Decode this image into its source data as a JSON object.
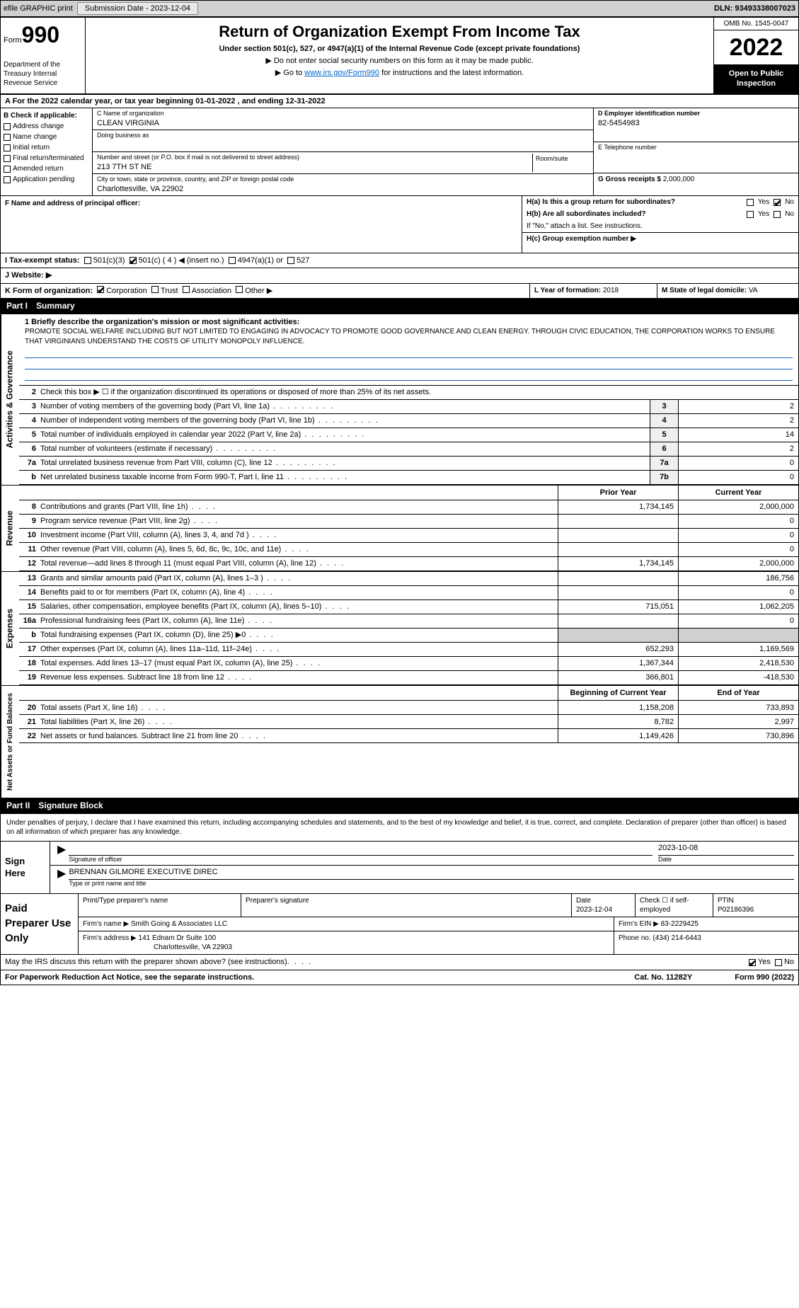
{
  "topbar": {
    "efile": "efile GRAPHIC print",
    "submission_label": "Submission Date - 2023-12-04",
    "dln_label": "DLN: 93493338007023"
  },
  "header": {
    "form_label": "Form",
    "form_number": "990",
    "main_title": "Return of Organization Exempt From Income Tax",
    "subtitle": "Under section 501(c), 527, or 4947(a)(1) of the Internal Revenue Code (except private foundations)",
    "note1": "▶ Do not enter social security numbers on this form as it may be made public.",
    "note2_pre": "▶ Go to ",
    "note2_link": "www.irs.gov/Form990",
    "note2_post": " for instructions and the latest information.",
    "omb": "OMB No. 1545-0047",
    "year": "2022",
    "open_inspect": "Open to Public Inspection",
    "dept": "Department of the Treasury Internal Revenue Service"
  },
  "line_a": "A For the 2022 calendar year, or tax year beginning 01-01-2022   , and ending 12-31-2022",
  "section_b": {
    "header": "B Check if applicable:",
    "items": [
      "Address change",
      "Name change",
      "Initial return",
      "Final return/terminated",
      "Amended return",
      "Application pending"
    ]
  },
  "section_c": {
    "name_label": "C Name of organization",
    "name_value": "CLEAN VIRGINIA",
    "dba_label": "Doing business as",
    "street_label": "Number and street (or P.O. box if mail is not delivered to street address)",
    "street_value": "213 7TH ST NE",
    "room_label": "Room/suite",
    "city_label": "City or town, state or province, country, and ZIP or foreign postal code",
    "city_value": "Charlottesville, VA  22902"
  },
  "section_d": {
    "label": "D Employer identification number",
    "value": "82-5454983"
  },
  "section_e": {
    "label": "E Telephone number"
  },
  "section_g": {
    "label": "G Gross receipts $",
    "value": "2,000,000"
  },
  "section_f": {
    "label": "F  Name and address of principal officer:"
  },
  "section_h": {
    "ha": "H(a)  Is this a group return for subordinates?",
    "hb": "H(b)  Are all subordinates included?",
    "hb_note": "If \"No,\" attach a list. See instructions.",
    "hc": "H(c)  Group exemption number ▶",
    "yes": "Yes",
    "no": "No"
  },
  "section_i": {
    "label": "I   Tax-exempt status:",
    "opt1": "501(c)(3)",
    "opt2": "501(c) ( 4 ) ◀ (insert no.)",
    "opt3": "4947(a)(1) or",
    "opt4": "527"
  },
  "section_j": {
    "label": "J   Website: ▶"
  },
  "section_k": {
    "label": "K Form of organization:",
    "opts": [
      "Corporation",
      "Trust",
      "Association",
      "Other ▶"
    ]
  },
  "section_l": {
    "label": "L Year of formation:",
    "value": "2018"
  },
  "section_m": {
    "label": "M State of legal domicile:",
    "value": "VA"
  },
  "part1": {
    "label": "Part I",
    "title": "Summary",
    "q1_label": "1  Briefly describe the organization's mission or most significant activities:",
    "mission": "PROMOTE SOCIAL WELFARE INCLUDING BUT NOT LIMITED TO ENGAGING IN ADVOCACY TO PROMOTE GOOD GOVERNANCE AND CLEAN ENERGY. THROUGH CIVIC EDUCATION, THE CORPORATION WORKS TO ENSURE THAT VIRGINIANS UNDERSTAND THE COSTS OF UTILITY MONOPOLY INFLUENCE.",
    "q2": "Check this box ▶ ☐  if the organization discontinued its operations or disposed of more than 25% of its net assets.",
    "governance_rows": [
      {
        "n": "3",
        "t": "Number of voting members of the governing body (Part VI, line 1a)",
        "box": "3",
        "v": "2"
      },
      {
        "n": "4",
        "t": "Number of independent voting members of the governing body (Part VI, line 1b)",
        "box": "4",
        "v": "2"
      },
      {
        "n": "5",
        "t": "Total number of individuals employed in calendar year 2022 (Part V, line 2a)",
        "box": "5",
        "v": "14"
      },
      {
        "n": "6",
        "t": "Total number of volunteers (estimate if necessary)",
        "box": "6",
        "v": "2"
      },
      {
        "n": "7a",
        "t": "Total unrelated business revenue from Part VIII, column (C), line 12",
        "box": "7a",
        "v": "0"
      },
      {
        "n": "b",
        "t": "Net unrelated business taxable income from Form 990-T, Part I, line 11",
        "box": "7b",
        "v": "0"
      }
    ],
    "col_prior": "Prior Year",
    "col_current": "Current Year",
    "revenue_rows": [
      {
        "n": "8",
        "t": "Contributions and grants (Part VIII, line 1h)",
        "p": "1,734,145",
        "c": "2,000,000"
      },
      {
        "n": "9",
        "t": "Program service revenue (Part VIII, line 2g)",
        "p": "",
        "c": "0"
      },
      {
        "n": "10",
        "t": "Investment income (Part VIII, column (A), lines 3, 4, and 7d )",
        "p": "",
        "c": "0"
      },
      {
        "n": "11",
        "t": "Other revenue (Part VIII, column (A), lines 5, 6d, 8c, 9c, 10c, and 11e)",
        "p": "",
        "c": "0"
      },
      {
        "n": "12",
        "t": "Total revenue—add lines 8 through 11 (must equal Part VIII, column (A), line 12)",
        "p": "1,734,145",
        "c": "2,000,000"
      }
    ],
    "expense_rows": [
      {
        "n": "13",
        "t": "Grants and similar amounts paid (Part IX, column (A), lines 1–3 )",
        "p": "",
        "c": "186,756"
      },
      {
        "n": "14",
        "t": "Benefits paid to or for members (Part IX, column (A), line 4)",
        "p": "",
        "c": "0"
      },
      {
        "n": "15",
        "t": "Salaries, other compensation, employee benefits (Part IX, column (A), lines 5–10)",
        "p": "715,051",
        "c": "1,062,205"
      },
      {
        "n": "16a",
        "t": "Professional fundraising fees (Part IX, column (A), line 11e)",
        "p": "",
        "c": "0"
      },
      {
        "n": "b",
        "t": "Total fundraising expenses (Part IX, column (D), line 25) ▶0",
        "p": "gray",
        "c": "gray"
      },
      {
        "n": "17",
        "t": "Other expenses (Part IX, column (A), lines 11a–11d, 11f–24e)",
        "p": "652,293",
        "c": "1,169,569"
      },
      {
        "n": "18",
        "t": "Total expenses. Add lines 13–17 (must equal Part IX, column (A), line 25)",
        "p": "1,367,344",
        "c": "2,418,530"
      },
      {
        "n": "19",
        "t": "Revenue less expenses. Subtract line 18 from line 12",
        "p": "366,801",
        "c": "-418,530"
      }
    ],
    "col_begin": "Beginning of Current Year",
    "col_end": "End of Year",
    "net_rows": [
      {
        "n": "20",
        "t": "Total assets (Part X, line 16)",
        "p": "1,158,208",
        "c": "733,893"
      },
      {
        "n": "21",
        "t": "Total liabilities (Part X, line 26)",
        "p": "8,782",
        "c": "2,997"
      },
      {
        "n": "22",
        "t": "Net assets or fund balances. Subtract line 21 from line 20",
        "p": "1,149,426",
        "c": "730,896"
      }
    ]
  },
  "part2": {
    "label": "Part II",
    "title": "Signature Block",
    "perjury": "Under penalties of perjury, I declare that I have examined this return, including accompanying schedules and statements, and to the best of my knowledge and belief, it is true, correct, and complete. Declaration of preparer (other than officer) is based on all information of which preparer has any knowledge.",
    "sign_here": "Sign Here",
    "sig_officer": "Signature of officer",
    "sig_date_val": "2023-10-08",
    "date_label": "Date",
    "name_title": "BRENNAN GILMORE  EXECUTIVE DIREC",
    "name_sublabel": "Type or print name and title",
    "paid_label": "Paid Preparer Use Only",
    "print_name_label": "Print/Type preparer's name",
    "prep_sig_label": "Preparer's signature",
    "prep_date_label": "Date",
    "prep_date_val": "2023-12-04",
    "check_self": "Check ☐ if self-employed",
    "ptin_label": "PTIN",
    "ptin_val": "P02186396",
    "firm_name_label": "Firm's name     ▶",
    "firm_name_val": "Smith Going & Associates LLC",
    "firm_ein_label": "Firm's EIN ▶",
    "firm_ein_val": "83-2229425",
    "firm_addr_label": "Firm's address ▶",
    "firm_addr_val1": "141 Ednam Dr Suite 100",
    "firm_addr_val2": "Charlottesville, VA  22903",
    "phone_label": "Phone no.",
    "phone_val": "(434) 214-6443"
  },
  "footer": {
    "discuss": "May the IRS discuss this return with the preparer shown above? (see instructions)",
    "yes": "Yes",
    "no": "No",
    "paperwork": "For Paperwork Reduction Act Notice, see the separate instructions.",
    "cat": "Cat. No. 11282Y",
    "form": "Form 990 (2022)"
  },
  "vert_labels": {
    "gov": "Activities & Governance",
    "rev": "Revenue",
    "exp": "Expenses",
    "net": "Net Assets or Fund Balances"
  }
}
